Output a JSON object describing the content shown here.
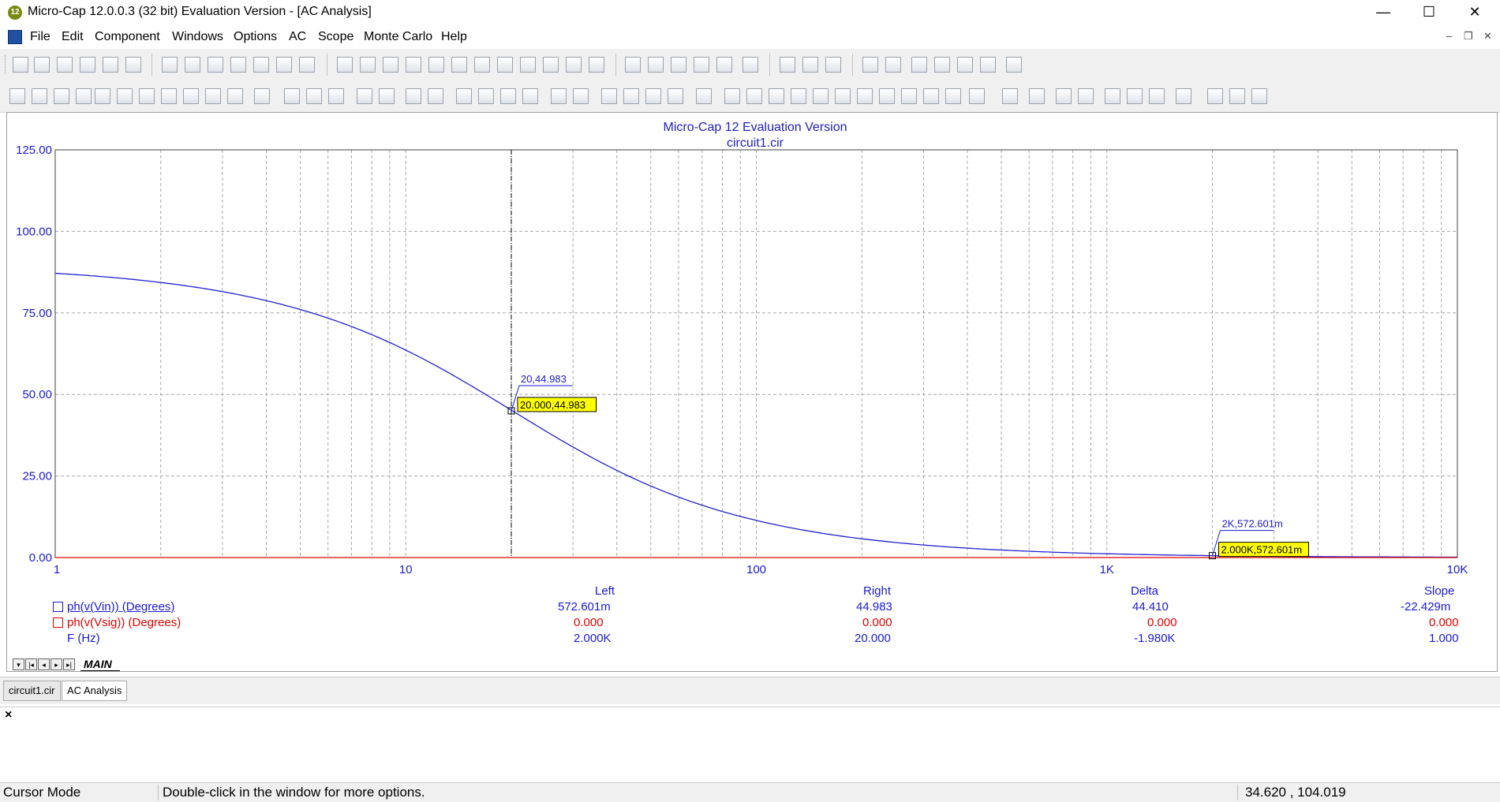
{
  "window": {
    "title": "Micro-Cap 12.0.0.3 (32 bit) Evaluation Version - [AC Analysis]",
    "app_icon_text": "12"
  },
  "menu": [
    "File",
    "Edit",
    "Component",
    "Windows",
    "Options",
    "AC",
    "Scope",
    "Monte Carlo",
    "Help"
  ],
  "window_controls": {
    "minimize": "—",
    "maximize": "☐",
    "close": "✕"
  },
  "mdi_controls": {
    "minimize": "–",
    "restore": "❐",
    "close": "✕"
  },
  "chart_data": {
    "type": "line",
    "title": "Micro-Cap 12 Evaluation Version",
    "subtitle": "circuit1.cir",
    "x_scale": "log",
    "xlim": [
      1,
      10000
    ],
    "ylim": [
      0,
      125
    ],
    "x_tick_values": [
      1,
      10,
      100,
      1000,
      10000
    ],
    "x_tick_labels": [
      "1",
      "10",
      "100",
      "1K",
      "10K"
    ],
    "y_tick_values": [
      0,
      25,
      50,
      75,
      100,
      125
    ],
    "y_tick_labels": [
      "0.00",
      "25.00",
      "50.00",
      "75.00",
      "100.00",
      "125.00"
    ],
    "grid": true,
    "series": [
      {
        "name": "ph(v(Vin)) (Degrees)",
        "color": "#2020d0",
        "formula": "atan(20.137/f)",
        "x": [
          1,
          2,
          5,
          10,
          20,
          50,
          100,
          200,
          500,
          1000,
          2000,
          5000,
          10000
        ],
        "y": [
          87.16,
          84.33,
          76.05,
          63.59,
          44.98,
          21.93,
          11.39,
          5.75,
          2.31,
          1.15,
          0.5726,
          0.23,
          0.12
        ]
      },
      {
        "name": "ph(v(Vsig)) (Degrees)",
        "color": "#e00000",
        "x": [
          1,
          10000
        ],
        "y": [
          0,
          0
        ]
      }
    ],
    "cursors": [
      {
        "x": 20,
        "y": 44.983,
        "label": "20,44.983",
        "box": "20.000,44.983"
      },
      {
        "x": 2000,
        "y": 0.572601,
        "label": "2K,572.601m",
        "box": "2.000K,572.601m"
      }
    ],
    "legend_table": {
      "headers": [
        "Left",
        "Right",
        "Delta",
        "Slope"
      ],
      "rows": [
        {
          "label": "ph(v(Vin)) (Degrees)",
          "color": "#1a1ad0",
          "values": [
            "572.601m",
            "44.983",
            "44.410",
            "-22.429m"
          ]
        },
        {
          "label": "ph(v(Vsig)) (Degrees)",
          "color": "#e00000",
          "values": [
            "0.000",
            "0.000",
            "0.000",
            "0.000"
          ]
        },
        {
          "label": "F (Hz)",
          "color": "#1a1ad0",
          "values": [
            "2.000K",
            "20.000",
            "-1.980K",
            "1.000"
          ]
        }
      ]
    }
  },
  "sheet_tab": "MAIN",
  "doc_tabs": [
    "circuit1.cir",
    "AC Analysis"
  ],
  "output_close": "×",
  "status": {
    "mode": "Cursor Mode",
    "hint": "Double-click in the window for more options.",
    "coords": "34.620 , 104.019"
  }
}
